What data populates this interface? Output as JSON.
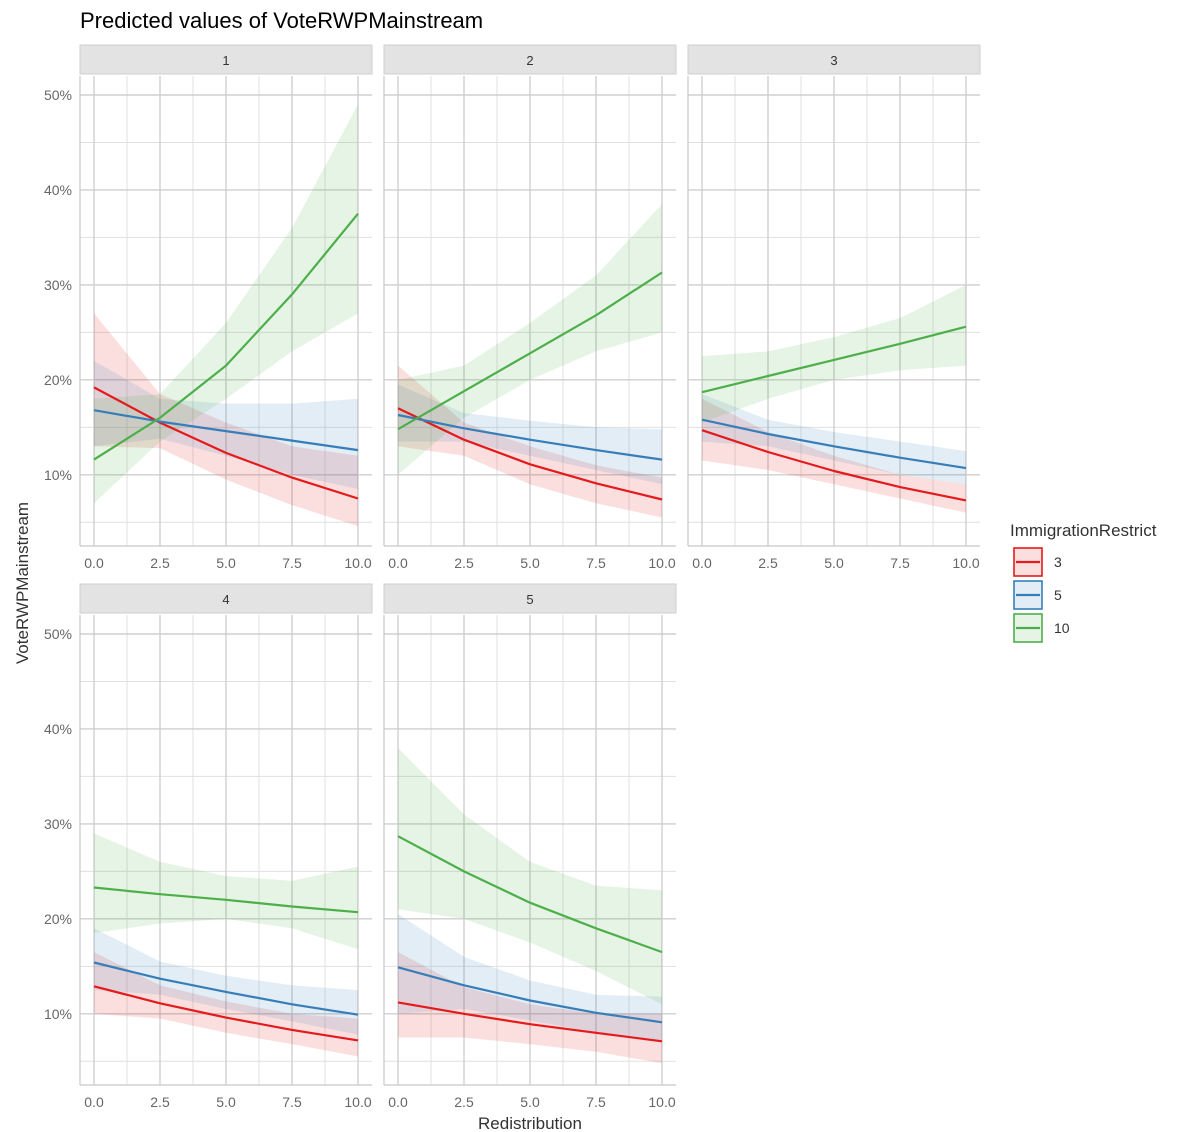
{
  "chart_data": {
    "type": "line",
    "title": "Predicted values of VoteRWPMainstream",
    "xlabel": "Redistribution",
    "ylabel": "VoteRWPMainstream",
    "x_ticks": [
      "0.0",
      "2.5",
      "5.0",
      "7.5",
      "10.0"
    ],
    "y_ticks": [
      "10%",
      "20%",
      "30%",
      "40%",
      "50%"
    ],
    "xlim": [
      0,
      10
    ],
    "ylim": [
      0.025,
      0.52
    ],
    "grid": true,
    "legend": {
      "title": "ImmigrationRestrict",
      "position": "right",
      "entries": [
        {
          "label": "3",
          "color": "#e41a1c"
        },
        {
          "label": "5",
          "color": "#377eb8"
        },
        {
          "label": "10",
          "color": "#4daf4a"
        }
      ]
    },
    "facets": [
      {
        "label": "1",
        "series": [
          {
            "name": "3",
            "color": "#e41a1c",
            "x": [
              0,
              2.5,
              5,
              7.5,
              10
            ],
            "y": [
              0.192,
              0.155,
              0.123,
              0.097,
              0.075
            ],
            "lower": [
              0.13,
              0.128,
              0.095,
              0.068,
              0.046
            ],
            "upper": [
              0.27,
              0.185,
              0.155,
              0.13,
              0.12
            ]
          },
          {
            "name": "5",
            "color": "#377eb8",
            "x": [
              0,
              2.5,
              5,
              7.5,
              10
            ],
            "y": [
              0.168,
              0.156,
              0.146,
              0.136,
              0.126
            ],
            "lower": [
              0.13,
              0.138,
              0.12,
              0.1,
              0.085
            ],
            "upper": [
              0.22,
              0.18,
              0.175,
              0.175,
              0.18
            ]
          },
          {
            "name": "10",
            "color": "#4daf4a",
            "x": [
              0,
              2.5,
              5,
              7.5,
              10
            ],
            "y": [
              0.116,
              0.16,
              0.215,
              0.29,
              0.375
            ],
            "lower": [
              0.07,
              0.135,
              0.18,
              0.23,
              0.27
            ],
            "upper": [
              0.18,
              0.185,
              0.26,
              0.36,
              0.49
            ]
          }
        ]
      },
      {
        "label": "2",
        "series": [
          {
            "name": "3",
            "color": "#e41a1c",
            "x": [
              0,
              2.5,
              5,
              7.5,
              10
            ],
            "y": [
              0.17,
              0.137,
              0.111,
              0.091,
              0.074
            ],
            "lower": [
              0.13,
              0.12,
              0.09,
              0.07,
              0.055
            ],
            "upper": [
              0.215,
              0.155,
              0.13,
              0.11,
              0.097
            ]
          },
          {
            "name": "5",
            "color": "#377eb8",
            "x": [
              0,
              2.5,
              5,
              7.5,
              10
            ],
            "y": [
              0.163,
              0.149,
              0.137,
              0.126,
              0.116
            ],
            "lower": [
              0.135,
              0.135,
              0.12,
              0.105,
              0.09
            ],
            "upper": [
              0.195,
              0.165,
              0.157,
              0.15,
              0.148
            ]
          },
          {
            "name": "10",
            "color": "#4daf4a",
            "x": [
              0,
              2.5,
              5,
              7.5,
              10
            ],
            "y": [
              0.148,
              0.188,
              0.228,
              0.268,
              0.313
            ],
            "lower": [
              0.1,
              0.16,
              0.2,
              0.23,
              0.25
            ],
            "upper": [
              0.2,
              0.215,
              0.26,
              0.31,
              0.385
            ]
          }
        ]
      },
      {
        "label": "3",
        "series": [
          {
            "name": "3",
            "color": "#e41a1c",
            "x": [
              0,
              2.5,
              5,
              7.5,
              10
            ],
            "y": [
              0.147,
              0.124,
              0.104,
              0.087,
              0.073
            ],
            "lower": [
              0.115,
              0.105,
              0.09,
              0.075,
              0.06
            ],
            "upper": [
              0.18,
              0.145,
              0.12,
              0.1,
              0.09
            ]
          },
          {
            "name": "5",
            "color": "#377eb8",
            "x": [
              0,
              2.5,
              5,
              7.5,
              10
            ],
            "y": [
              0.158,
              0.143,
              0.13,
              0.118,
              0.107
            ],
            "lower": [
              0.135,
              0.13,
              0.115,
              0.1,
              0.09
            ],
            "upper": [
              0.185,
              0.158,
              0.145,
              0.135,
              0.125
            ]
          },
          {
            "name": "10",
            "color": "#4daf4a",
            "x": [
              0,
              2.5,
              5,
              7.5,
              10
            ],
            "y": [
              0.187,
              0.204,
              0.221,
              0.238,
              0.256
            ],
            "lower": [
              0.155,
              0.18,
              0.2,
              0.21,
              0.215
            ],
            "upper": [
              0.225,
              0.23,
              0.245,
              0.265,
              0.3
            ]
          }
        ]
      },
      {
        "label": "4",
        "series": [
          {
            "name": "3",
            "color": "#e41a1c",
            "x": [
              0,
              2.5,
              5,
              7.5,
              10
            ],
            "y": [
              0.129,
              0.111,
              0.096,
              0.083,
              0.072
            ],
            "lower": [
              0.1,
              0.095,
              0.08,
              0.068,
              0.055
            ],
            "upper": [
              0.165,
              0.13,
              0.113,
              0.1,
              0.095
            ]
          },
          {
            "name": "5",
            "color": "#377eb8",
            "x": [
              0,
              2.5,
              5,
              7.5,
              10
            ],
            "y": [
              0.154,
              0.137,
              0.123,
              0.11,
              0.099
            ],
            "lower": [
              0.125,
              0.12,
              0.105,
              0.092,
              0.078
            ],
            "upper": [
              0.19,
              0.155,
              0.14,
              0.13,
              0.125
            ]
          },
          {
            "name": "10",
            "color": "#4daf4a",
            "x": [
              0,
              2.5,
              5,
              7.5,
              10
            ],
            "y": [
              0.233,
              0.226,
              0.22,
              0.213,
              0.207
            ],
            "lower": [
              0.185,
              0.195,
              0.2,
              0.19,
              0.168
            ],
            "upper": [
              0.29,
              0.26,
              0.245,
              0.24,
              0.255
            ]
          }
        ]
      },
      {
        "label": "5",
        "series": [
          {
            "name": "3",
            "color": "#e41a1c",
            "x": [
              0,
              2.5,
              5,
              7.5,
              10
            ],
            "y": [
              0.112,
              0.1,
              0.089,
              0.08,
              0.071
            ],
            "lower": [
              0.075,
              0.075,
              0.068,
              0.06,
              0.048
            ],
            "upper": [
              0.165,
              0.128,
              0.11,
              0.1,
              0.1
            ]
          },
          {
            "name": "5",
            "color": "#377eb8",
            "x": [
              0,
              2.5,
              5,
              7.5,
              10
            ],
            "y": [
              0.149,
              0.13,
              0.114,
              0.101,
              0.091
            ],
            "lower": [
              0.1,
              0.105,
              0.093,
              0.08,
              0.07
            ],
            "upper": [
              0.205,
              0.16,
              0.135,
              0.12,
              0.118
            ]
          },
          {
            "name": "10",
            "color": "#4daf4a",
            "x": [
              0,
              2.5,
              5,
              7.5,
              10
            ],
            "y": [
              0.287,
              0.25,
              0.217,
              0.19,
              0.165
            ],
            "lower": [
              0.21,
              0.2,
              0.175,
              0.145,
              0.11
            ],
            "upper": [
              0.38,
              0.31,
              0.26,
              0.235,
              0.23
            ]
          }
        ]
      }
    ]
  }
}
